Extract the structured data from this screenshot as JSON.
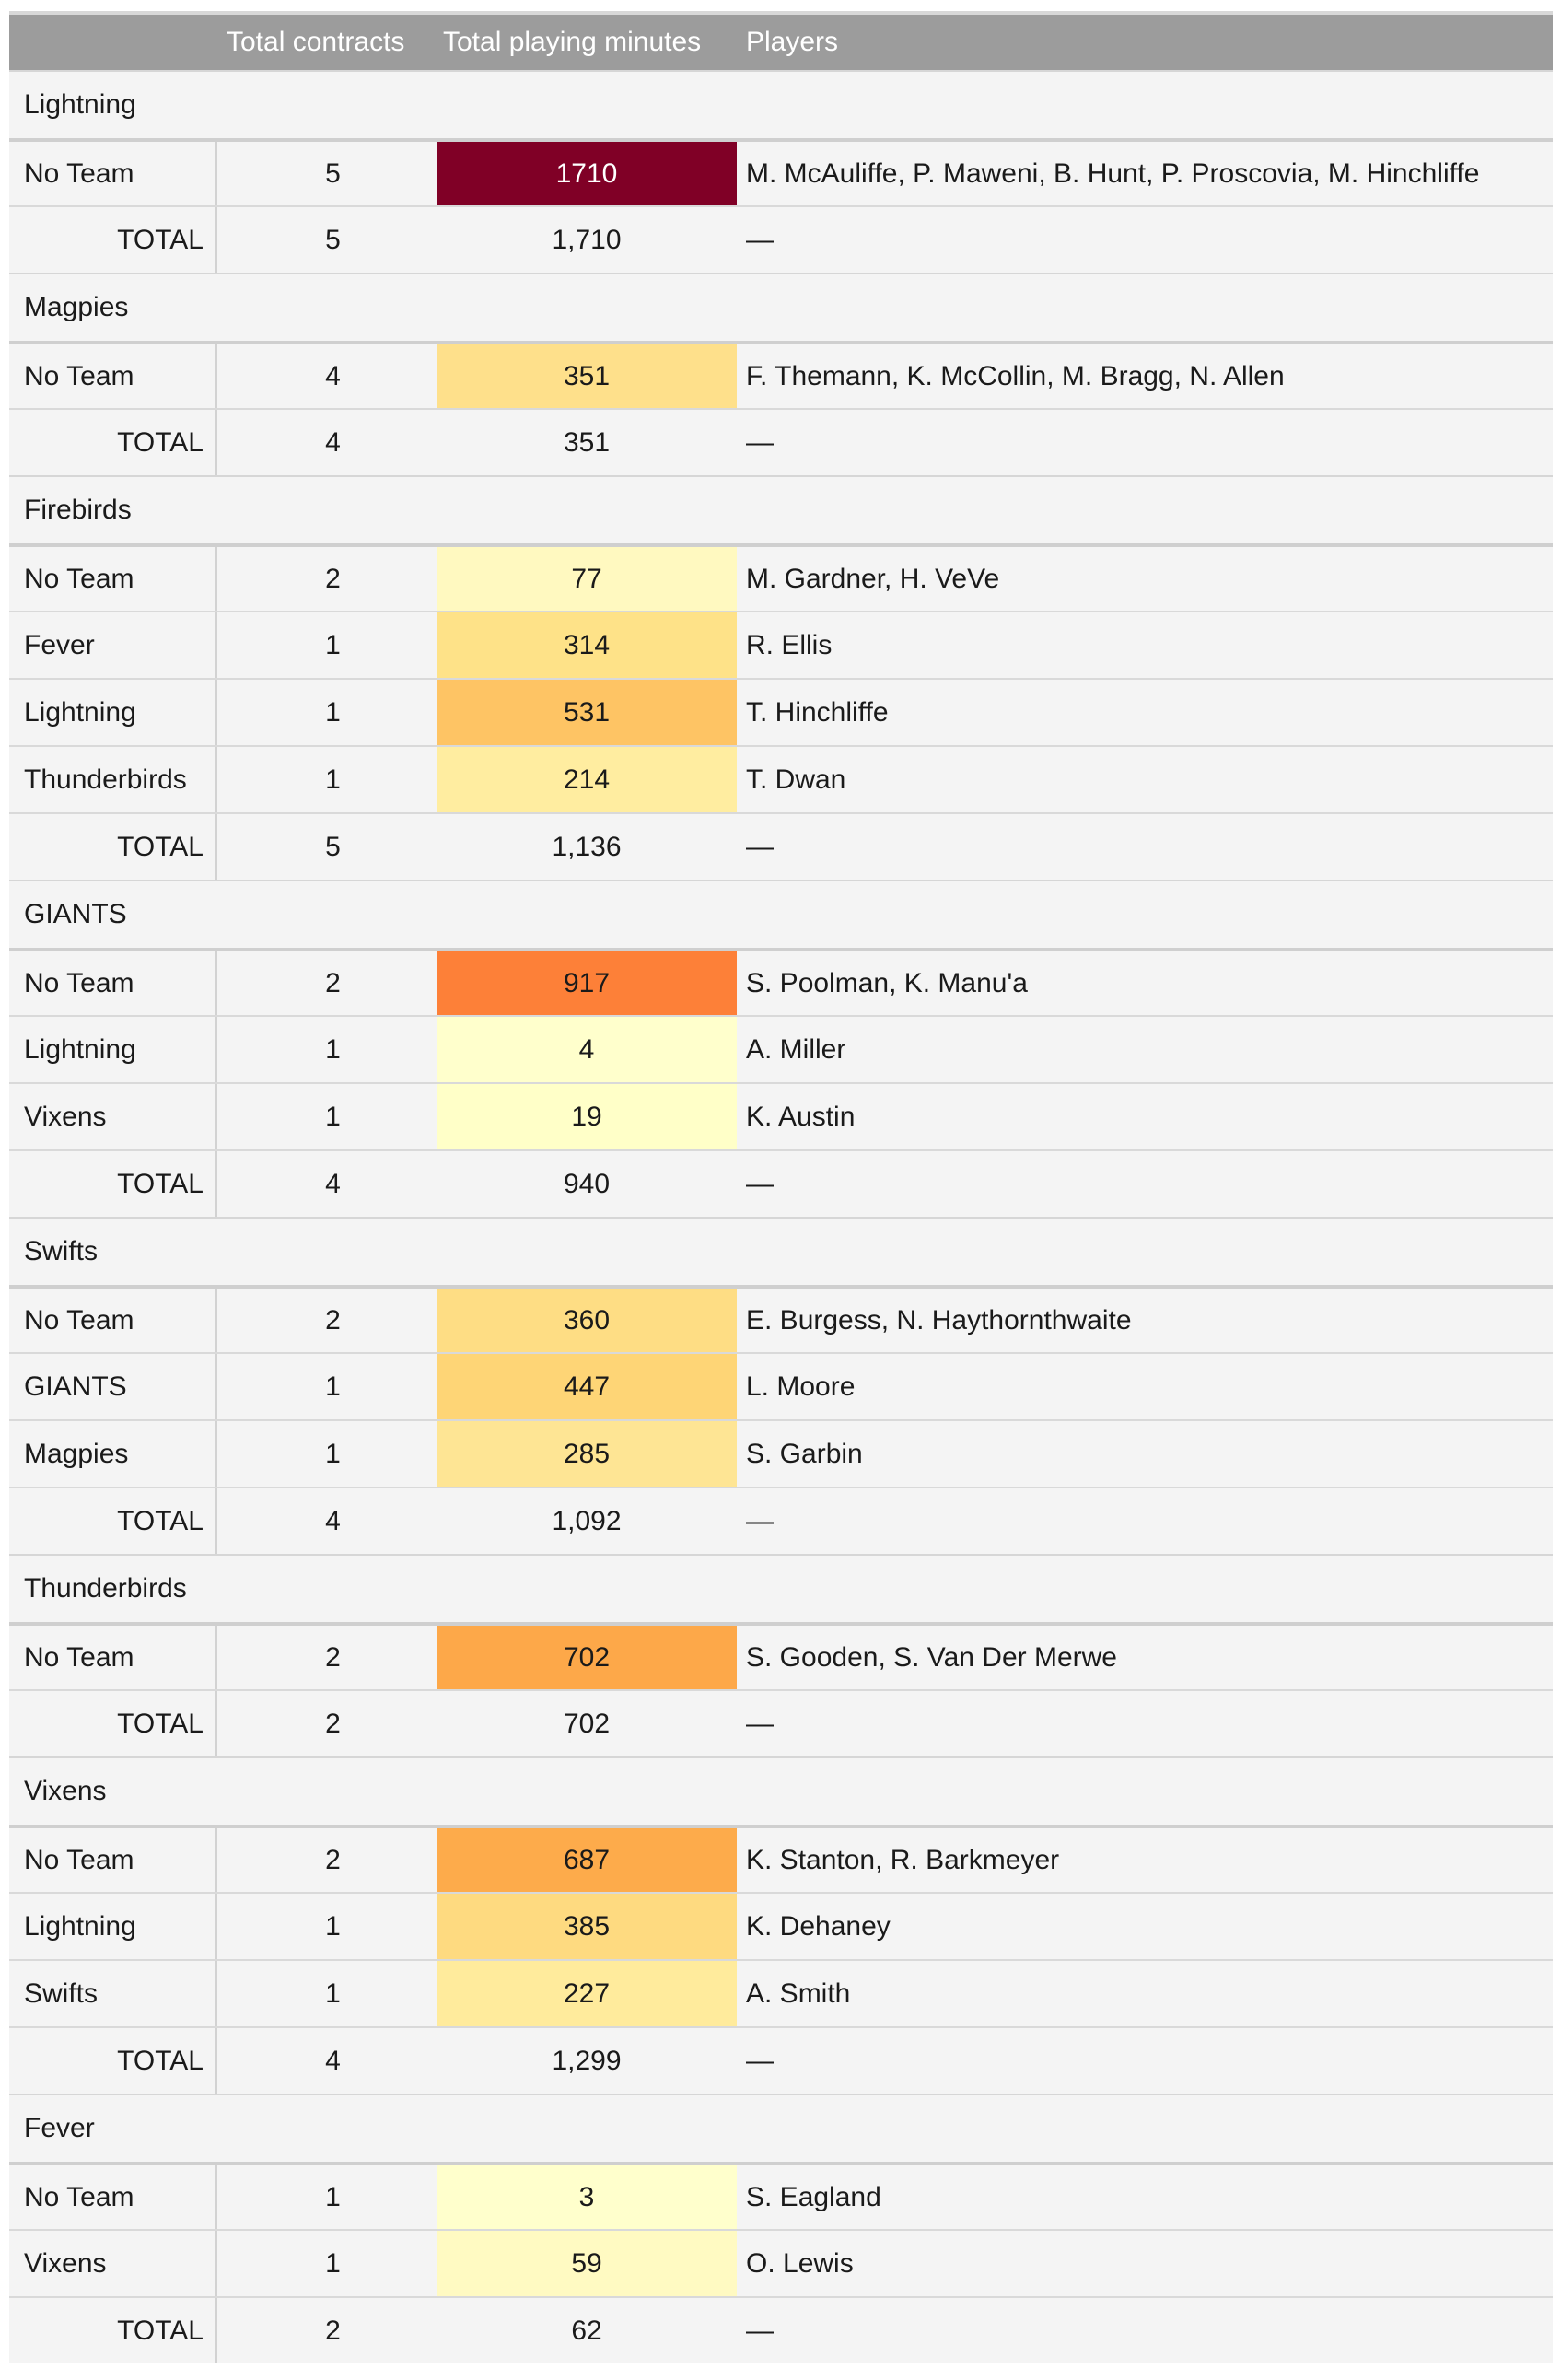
{
  "header": {
    "col_contracts": "Total contracts",
    "col_minutes": "Total playing minutes",
    "col_players": "Players"
  },
  "colors": {
    "header_bg": "#9c9c9c",
    "scale_low": "#ffffcc",
    "scale_mid": "#fd8d3c",
    "scale_high": "#800026"
  },
  "groups": [
    {
      "name": "Lightning",
      "rows": [
        {
          "team": "No Team",
          "contracts": "5",
          "minutes": "1710",
          "minutes_value": 1710,
          "players": "M. McAuliffe, P. Maweni, B. Hunt, P. Proscovia, M. Hinchliffe",
          "color": "#800026"
        }
      ],
      "total": {
        "label": "TOTAL",
        "contracts": "5",
        "minutes": "1,710",
        "players": "—"
      }
    },
    {
      "name": "Magpies",
      "rows": [
        {
          "team": "No Team",
          "contracts": "4",
          "minutes": "351",
          "minutes_value": 351,
          "players": "F. Themann, K. McCollin, M. Bragg, N. Allen",
          "color": "#fee08b"
        }
      ],
      "total": {
        "label": "TOTAL",
        "contracts": "4",
        "minutes": "351",
        "players": "—"
      }
    },
    {
      "name": "Firebirds",
      "rows": [
        {
          "team": "No Team",
          "contracts": "2",
          "minutes": "77",
          "minutes_value": 77,
          "players": "M. Gardner, H. VeVe",
          "color": "#fff9c0"
        },
        {
          "team": "Fever",
          "contracts": "1",
          "minutes": "314",
          "minutes_value": 314,
          "players": "R. Ellis",
          "color": "#fee288"
        },
        {
          "team": "Lightning",
          "contracts": "1",
          "minutes": "531",
          "minutes_value": 531,
          "players": "T. Hinchliffe",
          "color": "#fec464"
        },
        {
          "team": "Thunderbirds",
          "contracts": "1",
          "minutes": "214",
          "minutes_value": 214,
          "players": "T. Dwan",
          "color": "#ffeda0"
        }
      ],
      "total": {
        "label": "TOTAL",
        "contracts": "5",
        "minutes": "1,136",
        "players": "—"
      }
    },
    {
      "name": "GIANTS",
      "rows": [
        {
          "team": "No Team",
          "contracts": "2",
          "minutes": "917",
          "minutes_value": 917,
          "players": "S. Poolman, K. Manu'a",
          "color": "#fd8038"
        },
        {
          "team": "Lightning",
          "contracts": "1",
          "minutes": "4",
          "minutes_value": 4,
          "players": "A. Miller",
          "color": "#ffffcc"
        },
        {
          "team": "Vixens",
          "contracts": "1",
          "minutes": "19",
          "minutes_value": 19,
          "players": "K. Austin",
          "color": "#ffffc8"
        }
      ],
      "total": {
        "label": "TOTAL",
        "contracts": "4",
        "minutes": "940",
        "players": "—"
      }
    },
    {
      "name": "Swifts",
      "rows": [
        {
          "team": "No Team",
          "contracts": "2",
          "minutes": "360",
          "minutes_value": 360,
          "players": "E. Burgess, N. Haythornthwaite",
          "color": "#fedd84"
        },
        {
          "team": "GIANTS",
          "contracts": "1",
          "minutes": "447",
          "minutes_value": 447,
          "players": "L. Moore",
          "color": "#fed576"
        },
        {
          "team": "Magpies",
          "contracts": "1",
          "minutes": "285",
          "minutes_value": 285,
          "players": "S. Garbin",
          "color": "#fee594"
        }
      ],
      "total": {
        "label": "TOTAL",
        "contracts": "4",
        "minutes": "1,092",
        "players": "—"
      }
    },
    {
      "name": "Thunderbirds",
      "rows": [
        {
          "team": "No Team",
          "contracts": "2",
          "minutes": "702",
          "minutes_value": 702,
          "players": "S. Gooden, S. Van Der Merwe",
          "color": "#fda849"
        }
      ],
      "total": {
        "label": "TOTAL",
        "contracts": "2",
        "minutes": "702",
        "players": "—"
      }
    },
    {
      "name": "Vixens",
      "rows": [
        {
          "team": "No Team",
          "contracts": "2",
          "minutes": "687",
          "minutes_value": 687,
          "players": "K. Stanton, R. Barkmeyer",
          "color": "#fdab4b"
        },
        {
          "team": "Lightning",
          "contracts": "1",
          "minutes": "385",
          "minutes_value": 385,
          "players": "K. Dehaney",
          "color": "#feda80"
        },
        {
          "team": "Swifts",
          "contracts": "1",
          "minutes": "227",
          "minutes_value": 227,
          "players": "A. Smith",
          "color": "#ffeb9c"
        }
      ],
      "total": {
        "label": "TOTAL",
        "contracts": "4",
        "minutes": "1,299",
        "players": "—"
      }
    },
    {
      "name": "Fever",
      "rows": [
        {
          "team": "No Team",
          "contracts": "1",
          "minutes": "3",
          "minutes_value": 3,
          "players": "S. Eagland",
          "color": "#ffffcc"
        },
        {
          "team": "Vixens",
          "contracts": "1",
          "minutes": "59",
          "minutes_value": 59,
          "players": "O. Lewis",
          "color": "#fffac2"
        }
      ],
      "total": {
        "label": "TOTAL",
        "contracts": "2",
        "minutes": "62",
        "players": "—"
      }
    }
  ]
}
